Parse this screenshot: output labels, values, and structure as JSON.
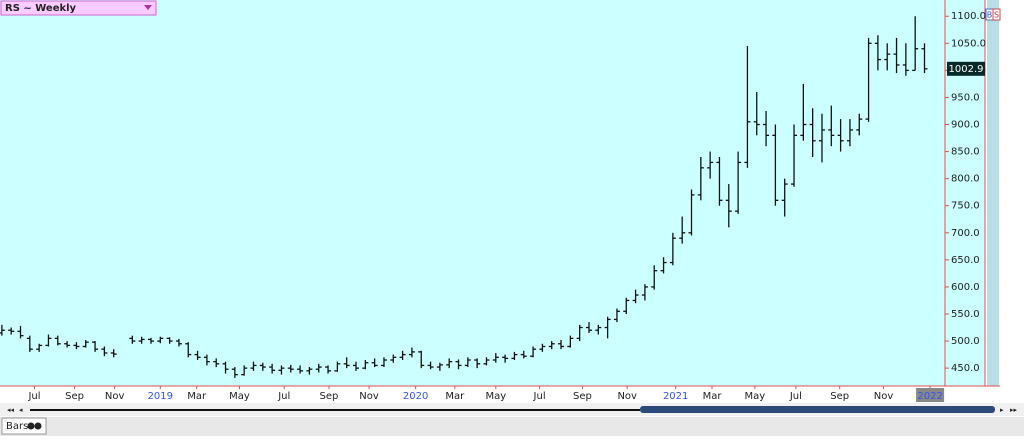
{
  "ui": {
    "symbol_label": "RS ~ Weekly",
    "footer_tab": "Bars",
    "badges": [
      "B",
      "S"
    ]
  },
  "chart_data": {
    "type": "ohlc",
    "color": "#111111",
    "background": "#ccffff",
    "open": [
      515,
      520,
      518,
      505,
      485,
      492,
      505,
      495,
      492,
      490,
      498,
      485,
      478,
      null,
      505,
      500,
      503,
      500,
      505,
      500,
      495,
      475,
      470,
      462,
      458,
      448,
      438,
      450,
      455,
      452,
      446,
      450,
      448,
      445,
      448,
      452,
      445,
      458,
      455,
      450,
      460,
      455,
      465,
      470,
      475,
      480,
      455,
      452,
      456,
      462,
      455,
      465,
      458,
      465,
      470,
      468,
      475,
      472,
      485,
      490,
      495,
      490,
      505,
      525,
      520,
      525,
      540,
      555,
      575,
      585,
      600,
      630,
      645,
      690,
      700,
      770,
      820,
      830,
      760,
      740,
      830,
      905,
      900,
      880,
      760,
      790,
      880,
      900,
      870,
      890,
      880,
      870,
      890,
      910,
      1050,
      1020,
      1030,
      1010,
      1000,
      1040
    ],
    "high": [
      530,
      525,
      528,
      510,
      495,
      512,
      510,
      500,
      498,
      502,
      500,
      490,
      485,
      null,
      510,
      508,
      506,
      508,
      507,
      504,
      498,
      482,
      475,
      468,
      462,
      452,
      455,
      462,
      460,
      458,
      455,
      456,
      455,
      452,
      458,
      455,
      462,
      470,
      462,
      465,
      468,
      470,
      475,
      482,
      488,
      482,
      462,
      460,
      468,
      466,
      470,
      468,
      470,
      478,
      475,
      480,
      482,
      490,
      495,
      500,
      502,
      510,
      530,
      535,
      530,
      545,
      560,
      580,
      595,
      605,
      640,
      655,
      700,
      730,
      780,
      840,
      850,
      840,
      790,
      850,
      1045,
      960,
      925,
      900,
      800,
      900,
      975,
      930,
      920,
      935,
      910,
      910,
      920,
      1060,
      1065,
      1050,
      1060,
      1050,
      1100,
      1050
    ],
    "low": [
      510,
      512,
      505,
      480,
      480,
      490,
      492,
      488,
      485,
      488,
      480,
      472,
      470,
      null,
      495,
      495,
      495,
      496,
      495,
      490,
      470,
      465,
      455,
      452,
      440,
      432,
      436,
      445,
      445,
      440,
      438,
      442,
      440,
      438,
      442,
      440,
      443,
      450,
      445,
      448,
      452,
      452,
      460,
      465,
      470,
      450,
      448,
      445,
      450,
      448,
      452,
      450,
      455,
      460,
      460,
      465,
      468,
      470,
      480,
      485,
      485,
      488,
      500,
      515,
      512,
      505,
      535,
      550,
      570,
      575,
      595,
      625,
      640,
      680,
      695,
      760,
      800,
      750,
      710,
      735,
      820,
      880,
      860,
      750,
      730,
      785,
      870,
      840,
      830,
      860,
      850,
      860,
      880,
      905,
      1000,
      1000,
      995,
      990,
      1000,
      995
    ],
    "close": [
      520,
      518,
      510,
      485,
      492,
      505,
      495,
      492,
      490,
      498,
      485,
      478,
      476,
      null,
      500,
      503,
      500,
      505,
      500,
      495,
      475,
      470,
      462,
      458,
      448,
      438,
      450,
      455,
      452,
      446,
      450,
      448,
      445,
      448,
      452,
      445,
      458,
      455,
      450,
      460,
      455,
      465,
      470,
      475,
      480,
      455,
      452,
      456,
      462,
      455,
      465,
      458,
      465,
      470,
      468,
      475,
      472,
      485,
      490,
      495,
      490,
      505,
      525,
      520,
      525,
      540,
      555,
      575,
      585,
      600,
      630,
      645,
      690,
      700,
      770,
      820,
      830,
      760,
      740,
      830,
      905,
      900,
      880,
      760,
      790,
      880,
      900,
      870,
      890,
      880,
      870,
      890,
      910,
      1050,
      1020,
      1030,
      1010,
      1000,
      1040,
      1002.9
    ],
    "xlim": [
      -0.2,
      101.2
    ],
    "xticks": [
      {
        "value": 3.5,
        "label": "Jul"
      },
      {
        "value": 7.8,
        "label": "Sep"
      },
      {
        "value": 12.1,
        "label": "Nov"
      },
      {
        "value": 17,
        "label": "2019"
      },
      {
        "value": 20.9,
        "label": "Mar"
      },
      {
        "value": 25.5,
        "label": "May"
      },
      {
        "value": 30.3,
        "label": "Jul"
      },
      {
        "value": 35.1,
        "label": "Sep"
      },
      {
        "value": 39.4,
        "label": "Nov"
      },
      {
        "value": 44.4,
        "label": "2020"
      },
      {
        "value": 48.6,
        "label": "Mar"
      },
      {
        "value": 53,
        "label": "May"
      },
      {
        "value": 57.7,
        "label": "Jul"
      },
      {
        "value": 62.3,
        "label": "Sep"
      },
      {
        "value": 67.1,
        "label": "Nov"
      },
      {
        "value": 72.3,
        "label": "2021"
      },
      {
        "value": 76.2,
        "label": "Mar"
      },
      {
        "value": 80.8,
        "label": "May"
      },
      {
        "value": 85.2,
        "label": "Jul"
      },
      {
        "value": 89.9,
        "label": "Sep"
      },
      {
        "value": 94.6,
        "label": "Nov"
      },
      {
        "value": 99.6,
        "label": "2022"
      }
    ],
    "ylim": [
      417,
      1130
    ],
    "yticks": [
      {
        "value": 450,
        "label": "450.0"
      },
      {
        "value": 500,
        "label": "500.0"
      },
      {
        "value": 550,
        "label": "550.0"
      },
      {
        "value": 600,
        "label": "600.0"
      },
      {
        "value": 650,
        "label": "650.0"
      },
      {
        "value": 700,
        "label": "700.0"
      },
      {
        "value": 750,
        "label": "750.0"
      },
      {
        "value": 800,
        "label": "800.0"
      },
      {
        "value": 850,
        "label": "850.0"
      },
      {
        "value": 900,
        "label": "900.0"
      },
      {
        "value": 950,
        "label": "950.0"
      },
      {
        "value": 1000,
        "label": "1000.0"
      },
      {
        "value": 1050,
        "label": "1050.0"
      },
      {
        "value": 1100,
        "label": "1100.0"
      }
    ]
  }
}
